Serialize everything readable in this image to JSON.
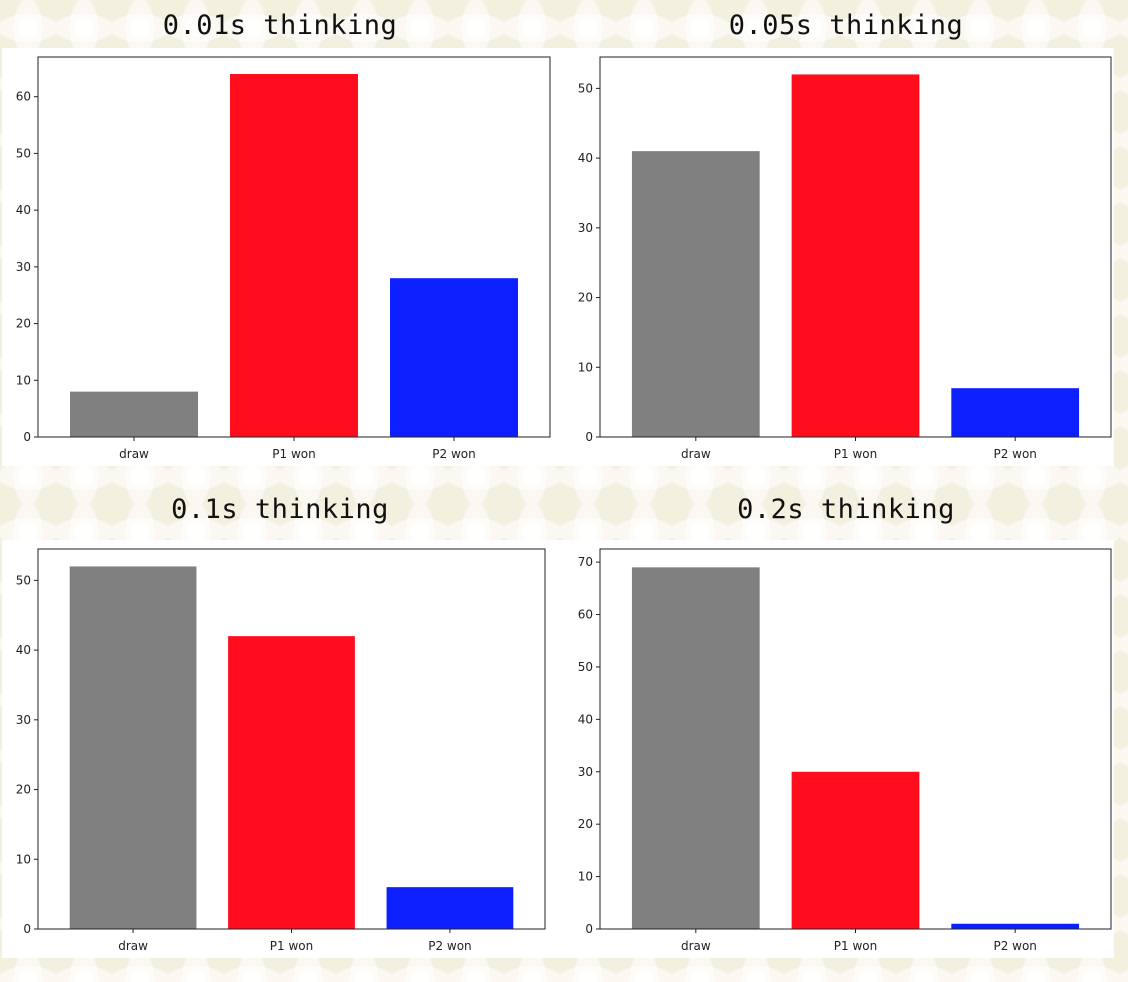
{
  "colors": {
    "draw": "#808080",
    "p1": "#ff0d1d",
    "p2": "#0c20ff"
  },
  "chart_data": [
    {
      "type": "bar",
      "title": "0.01s thinking",
      "categories": [
        "draw",
        "P1 won",
        "P2 won"
      ],
      "values": [
        8,
        64,
        28
      ],
      "ylim": [
        0,
        67
      ],
      "yticks": [
        0,
        10,
        20,
        30,
        40,
        50,
        60
      ],
      "xlabel": "",
      "ylabel": "",
      "grid": false
    },
    {
      "type": "bar",
      "title": "0.05s thinking",
      "categories": [
        "draw",
        "P1 won",
        "P2 won"
      ],
      "values": [
        41,
        52,
        7
      ],
      "ylim": [
        0,
        54.5
      ],
      "yticks": [
        0,
        10,
        20,
        30,
        40,
        50
      ],
      "xlabel": "",
      "ylabel": "",
      "grid": false
    },
    {
      "type": "bar",
      "title": "0.1s thinking",
      "categories": [
        "draw",
        "P1 won",
        "P2 won"
      ],
      "values": [
        52,
        42,
        6
      ],
      "ylim": [
        0,
        54.5
      ],
      "yticks": [
        0,
        10,
        20,
        30,
        40,
        50
      ],
      "xlabel": "",
      "ylabel": "",
      "grid": false
    },
    {
      "type": "bar",
      "title": "0.2s thinking",
      "categories": [
        "draw",
        "P1 won",
        "P2 won"
      ],
      "values": [
        69,
        30,
        1
      ],
      "ylim": [
        0,
        72.5
      ],
      "yticks": [
        0,
        10,
        20,
        30,
        40,
        50,
        60,
        70
      ],
      "xlabel": "",
      "ylabel": "",
      "grid": false
    }
  ]
}
